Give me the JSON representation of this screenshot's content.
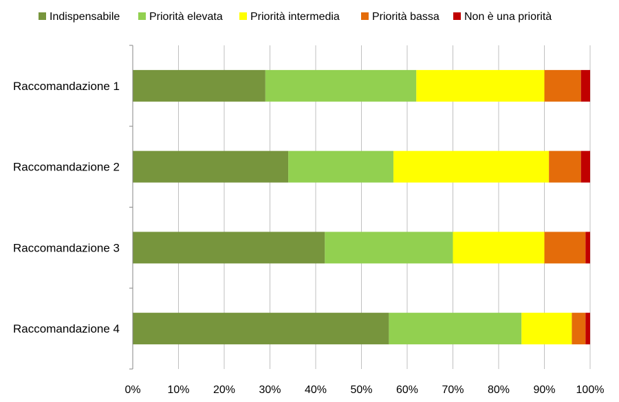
{
  "chart_data": {
    "type": "bar",
    "orientation": "horizontal",
    "stacked": "percent",
    "categories": [
      "Raccomandazione 1",
      "Raccomandazione 2",
      "Raccomandazione 3",
      "Raccomandazione 4"
    ],
    "series": [
      {
        "name": "Indispensabile",
        "color": "#77953d",
        "values": [
          29,
          34,
          42,
          56
        ]
      },
      {
        "name": "Priorità elevata",
        "color": "#92d050",
        "values": [
          33,
          23,
          28,
          29
        ]
      },
      {
        "name": "Priorità intermedia",
        "color": "#ffff00",
        "values": [
          28,
          34,
          20,
          11
        ]
      },
      {
        "name": "Priorità bassa",
        "color": "#e46c0a",
        "values": [
          8,
          7,
          9,
          3
        ]
      },
      {
        "name": "Non è una priorità",
        "color": "#c00000",
        "values": [
          2,
          2,
          1,
          1
        ]
      }
    ],
    "xlim": [
      0,
      100
    ],
    "x_ticks": [
      "0%",
      "10%",
      "20%",
      "30%",
      "40%",
      "50%",
      "60%",
      "70%",
      "80%",
      "90%",
      "100%"
    ],
    "grid": "vertical",
    "legend": "top",
    "title": "",
    "xlabel": "",
    "ylabel": ""
  }
}
